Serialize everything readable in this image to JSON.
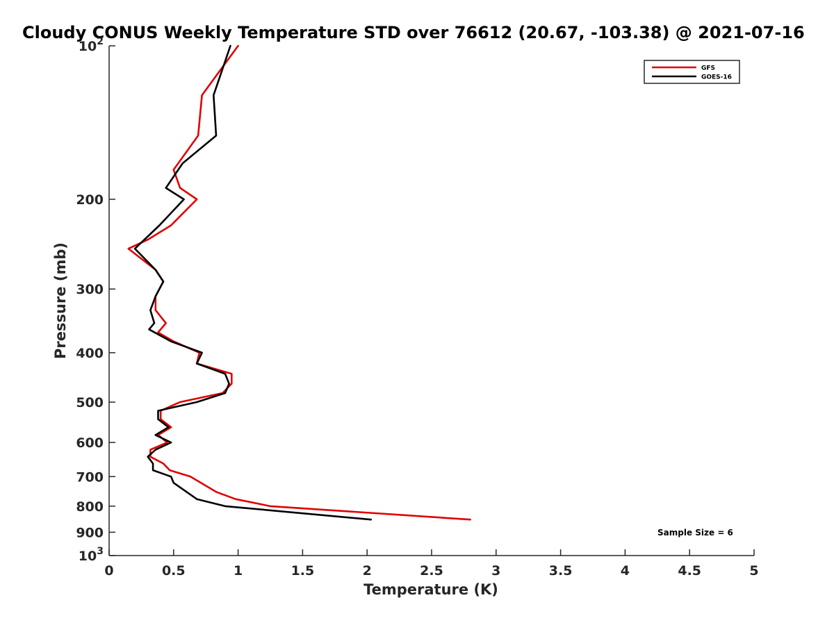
{
  "chart_data": {
    "type": "line",
    "title": "Cloudy CONUS Weekly Temperature STD over 76612 (20.67, -103.38) @ 2021-07-16",
    "xlabel": "Temperature (K)",
    "ylabel": "Pressure (mb)",
    "xlim": [
      0,
      5
    ],
    "ylim": [
      100,
      1000
    ],
    "y_scale": "log",
    "y_reversed": true,
    "grid": false,
    "legend_position": "top-right",
    "x_ticks": [
      {
        "value": 0,
        "label": "0"
      },
      {
        "value": 0.5,
        "label": "0.5"
      },
      {
        "value": 1,
        "label": "1"
      },
      {
        "value": 1.5,
        "label": "1.5"
      },
      {
        "value": 2,
        "label": "2"
      },
      {
        "value": 2.5,
        "label": "2.5"
      },
      {
        "value": 3,
        "label": "3"
      },
      {
        "value": 3.5,
        "label": "3.5"
      },
      {
        "value": 4,
        "label": "4"
      },
      {
        "value": 4.5,
        "label": "4.5"
      },
      {
        "value": 5,
        "label": "5"
      }
    ],
    "y_ticks": [
      {
        "value": 100,
        "base": "10",
        "exp": "2"
      },
      {
        "value": 200,
        "base": "200",
        "exp": ""
      },
      {
        "value": 300,
        "base": "300",
        "exp": ""
      },
      {
        "value": 400,
        "base": "400",
        "exp": ""
      },
      {
        "value": 500,
        "base": "500",
        "exp": ""
      },
      {
        "value": 600,
        "base": "600",
        "exp": ""
      },
      {
        "value": 700,
        "base": "700",
        "exp": ""
      },
      {
        "value": 800,
        "base": "800",
        "exp": ""
      },
      {
        "value": 900,
        "base": "900",
        "exp": ""
      },
      {
        "value": 1000,
        "base": "10",
        "exp": "3"
      }
    ],
    "series": [
      {
        "name": "GFS",
        "color": "#e00000",
        "points": [
          [
            1.0,
            100
          ],
          [
            0.72,
            125
          ],
          [
            0.69,
            150
          ],
          [
            0.5,
            175
          ],
          [
            0.55,
            190
          ],
          [
            0.68,
            200
          ],
          [
            0.48,
            225
          ],
          [
            0.3,
            240
          ],
          [
            0.15,
            250
          ],
          [
            0.36,
            275
          ],
          [
            0.42,
            290
          ],
          [
            0.36,
            310
          ],
          [
            0.36,
            330
          ],
          [
            0.44,
            350
          ],
          [
            0.38,
            365
          ],
          [
            0.5,
            380
          ],
          [
            0.7,
            400
          ],
          [
            0.68,
            420
          ],
          [
            0.95,
            440
          ],
          [
            0.95,
            460
          ],
          [
            0.88,
            480
          ],
          [
            0.55,
            500
          ],
          [
            0.4,
            520
          ],
          [
            0.4,
            540
          ],
          [
            0.48,
            560
          ],
          [
            0.38,
            580
          ],
          [
            0.45,
            600
          ],
          [
            0.32,
            620
          ],
          [
            0.32,
            640
          ],
          [
            0.42,
            660
          ],
          [
            0.47,
            680
          ],
          [
            0.63,
            700
          ],
          [
            0.83,
            750
          ],
          [
            0.98,
            775
          ],
          [
            1.25,
            800
          ],
          [
            2.8,
            850
          ]
        ]
      },
      {
        "name": "GOES-16",
        "color": "#000000",
        "points": [
          [
            0.94,
            100
          ],
          [
            0.81,
            125
          ],
          [
            0.83,
            150
          ],
          [
            0.57,
            170
          ],
          [
            0.44,
            190
          ],
          [
            0.58,
            200
          ],
          [
            0.39,
            225
          ],
          [
            0.2,
            250
          ],
          [
            0.36,
            275
          ],
          [
            0.42,
            290
          ],
          [
            0.36,
            310
          ],
          [
            0.32,
            330
          ],
          [
            0.35,
            350
          ],
          [
            0.31,
            360
          ],
          [
            0.48,
            380
          ],
          [
            0.72,
            400
          ],
          [
            0.68,
            420
          ],
          [
            0.9,
            440
          ],
          [
            0.93,
            460
          ],
          [
            0.9,
            480
          ],
          [
            0.68,
            500
          ],
          [
            0.38,
            520
          ],
          [
            0.38,
            540
          ],
          [
            0.46,
            560
          ],
          [
            0.36,
            580
          ],
          [
            0.48,
            600
          ],
          [
            0.36,
            620
          ],
          [
            0.3,
            640
          ],
          [
            0.34,
            660
          ],
          [
            0.34,
            680
          ],
          [
            0.48,
            700
          ],
          [
            0.5,
            720
          ],
          [
            0.6,
            750
          ],
          [
            0.68,
            775
          ],
          [
            0.9,
            800
          ],
          [
            2.03,
            850
          ]
        ]
      }
    ],
    "annotations": [
      {
        "text": "Sample Size = 6",
        "position": "bottom-right"
      }
    ]
  }
}
